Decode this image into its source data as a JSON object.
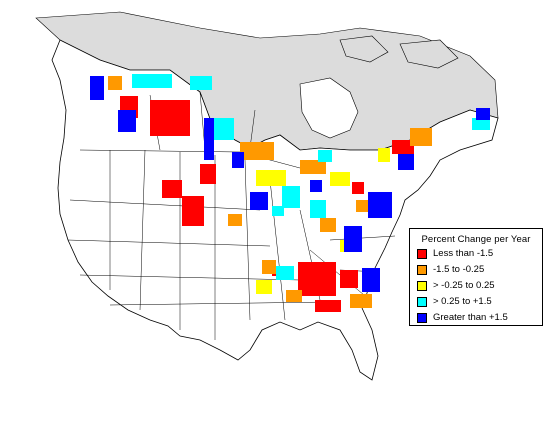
{
  "legend": {
    "title": "Percent Change per Year",
    "items": [
      {
        "label": "Less than -1.5",
        "color": "#ff0000"
      },
      {
        "label": "-1.5 to -0.25",
        "color": "#ff9900"
      },
      {
        "label": "> -0.25 to 0.25",
        "color": "#ffff00"
      },
      {
        "label": "> 0.25 to +1.5",
        "color": "#00ffff"
      },
      {
        "label": "Greater than +1.5",
        "color": "#0000ff"
      }
    ]
  },
  "colors": {
    "arctic": "#dcdcdc",
    "land": "#ffffff",
    "borders": "#000000"
  }
}
